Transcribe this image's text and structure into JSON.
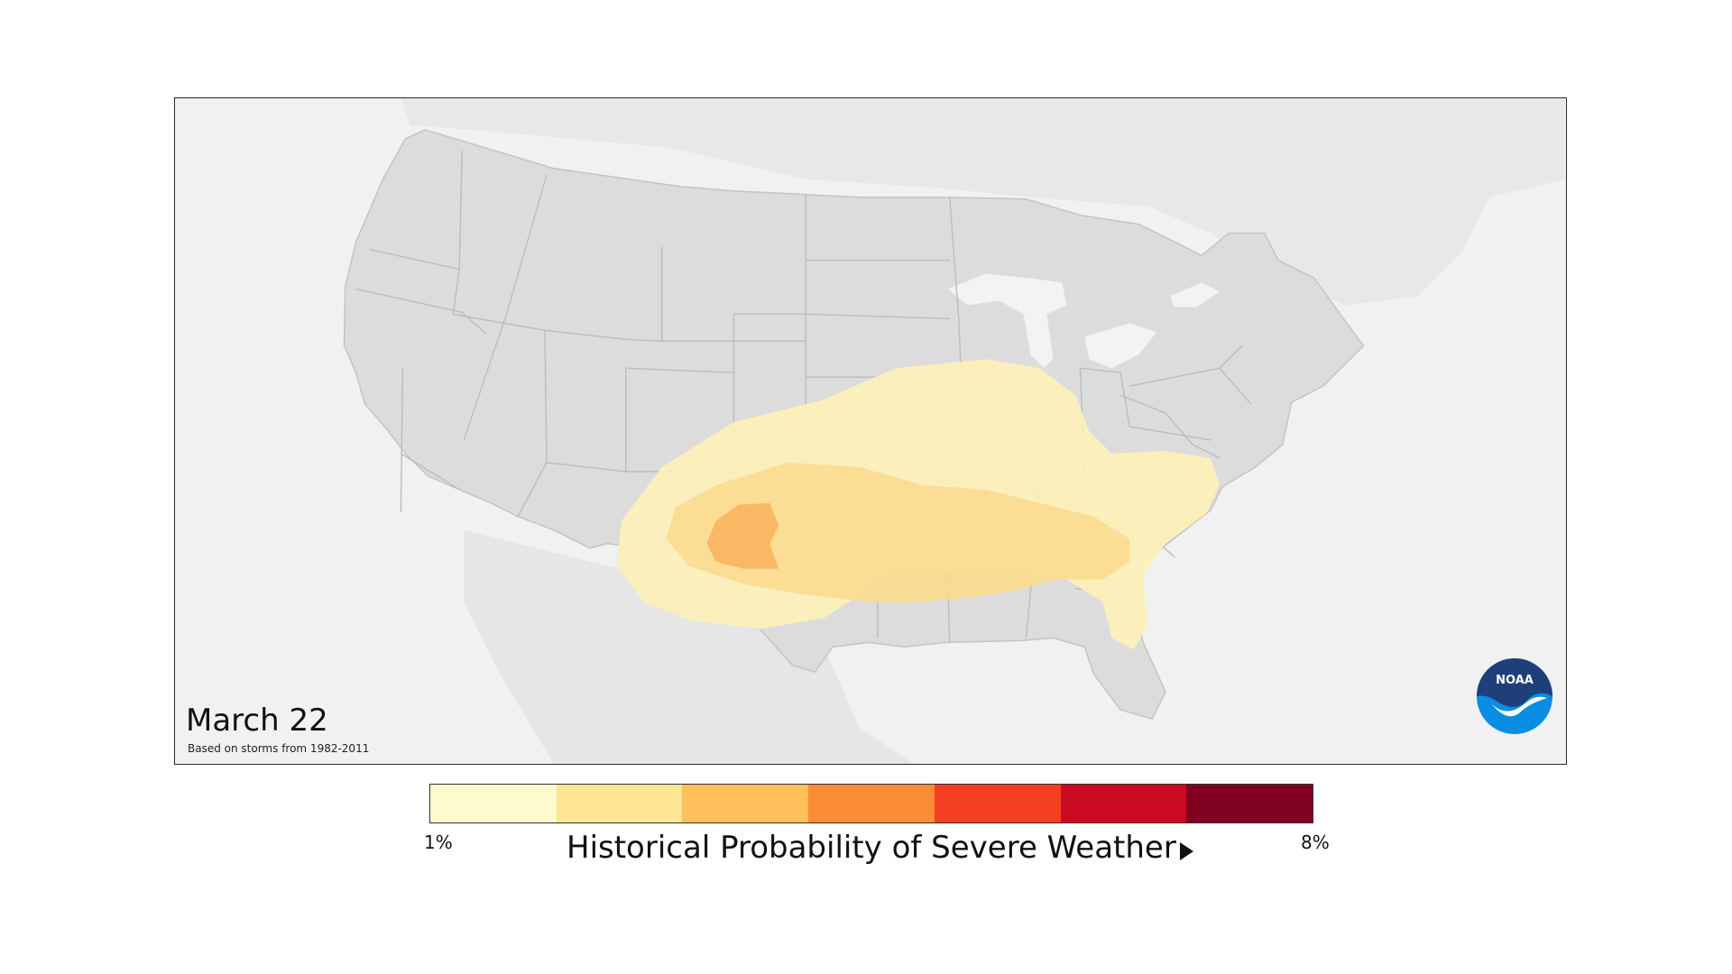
{
  "map": {
    "date": "March 22",
    "subtitle": "Based on storms from 1982-2011",
    "logo_text": "NOAA",
    "colors": {
      "ocean": "#f1f1f1",
      "land_outside": "#e9e9e9",
      "us_land": "#dcdcdc",
      "state_lines": "#bdbdbd",
      "lakes": "#f4f4f4"
    },
    "probability_levels_shown": [
      "1%",
      "2%",
      "3%"
    ]
  },
  "legend": {
    "title": "Historical Probability of Severe Weather",
    "min_label": "1%",
    "max_label": "8%",
    "colors": [
      "#fffacd",
      "#fde592",
      "#fdc05b",
      "#fb8c35",
      "#f23f22",
      "#c90a20",
      "#800020"
    ]
  }
}
